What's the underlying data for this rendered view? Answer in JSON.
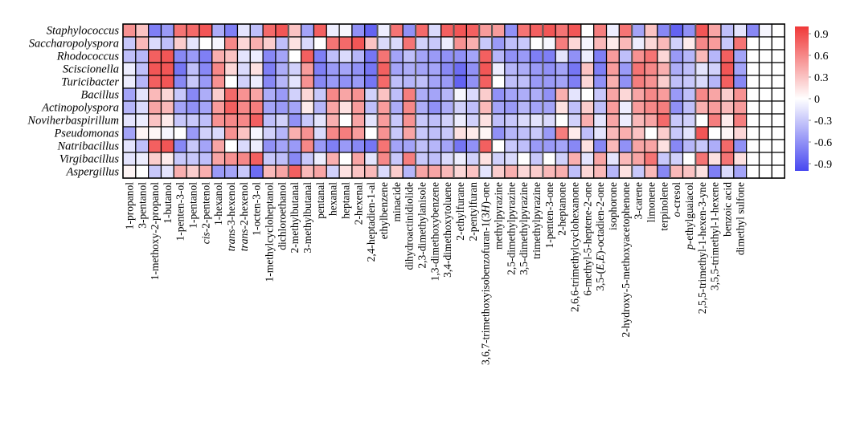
{
  "chart_data": {
    "type": "heatmap",
    "title": "",
    "xlabel": "",
    "ylabel": "",
    "rows": [
      "Staphylococcus",
      "Saccharopolyspora",
      "Rhodococcus",
      "Sciscionella",
      "Turicibacter",
      "Bacillus",
      "Actinopolyspora",
      "Noviherbaspirillum",
      "Pseudomonas",
      "Natribacillus",
      "Virgibacillus",
      "Aspergillus"
    ],
    "columns": [
      {
        "name": "1-propanol",
        "parts": [
          [
            "1-propanol",
            false
          ]
        ]
      },
      {
        "name": "3-pentanol",
        "parts": [
          [
            "3-pentanol",
            false
          ]
        ]
      },
      {
        "name": "1-methoxy-2-propanol",
        "parts": [
          [
            "1-methoxy-2-propanol",
            false
          ]
        ]
      },
      {
        "name": "1-butanol",
        "parts": [
          [
            "1-butanol",
            false
          ]
        ]
      },
      {
        "name": "1-penten-3-ol",
        "parts": [
          [
            "1-penten-3-ol",
            false
          ]
        ]
      },
      {
        "name": "1-pentanol",
        "parts": [
          [
            "1-pentanol",
            false
          ]
        ]
      },
      {
        "name": "cis-2-pentenol",
        "parts": [
          [
            "cis",
            true
          ],
          [
            "-2-pentenol",
            false
          ]
        ]
      },
      {
        "name": "1-hexanol",
        "parts": [
          [
            "1-hexanol",
            false
          ]
        ]
      },
      {
        "name": "trans-3-hexenol",
        "parts": [
          [
            "trans",
            true
          ],
          [
            "-3-hexenol",
            false
          ]
        ]
      },
      {
        "name": "trans-2-hexenol",
        "parts": [
          [
            "trans",
            true
          ],
          [
            "-2-hexenol",
            false
          ]
        ]
      },
      {
        "name": "1-octen-3-ol",
        "parts": [
          [
            "1-octen-3-ol",
            false
          ]
        ]
      },
      {
        "name": "1-methylcycloheptanol",
        "parts": [
          [
            "1-methylcycloheptanol",
            false
          ]
        ]
      },
      {
        "name": "dichloroethanol",
        "parts": [
          [
            "dichloroethanol",
            false
          ]
        ]
      },
      {
        "name": "2-methylbutanal",
        "parts": [
          [
            "2-methylbutanal",
            false
          ]
        ]
      },
      {
        "name": "3-methylbutanal",
        "parts": [
          [
            "3-methylbutanal",
            false
          ]
        ]
      },
      {
        "name": "pentanal",
        "parts": [
          [
            "pentanal",
            false
          ]
        ]
      },
      {
        "name": "hexanal",
        "parts": [
          [
            "hexanal",
            false
          ]
        ]
      },
      {
        "name": "heptanal",
        "parts": [
          [
            "heptanal",
            false
          ]
        ]
      },
      {
        "name": "2-hexenal",
        "parts": [
          [
            "2-hexenal",
            false
          ]
        ]
      },
      {
        "name": "2,4-heptadien-1-al",
        "parts": [
          [
            "2,4-heptadien-1-al",
            false
          ]
        ]
      },
      {
        "name": "ethylbenzene",
        "parts": [
          [
            "ethylbenzene",
            false
          ]
        ]
      },
      {
        "name": "minacide",
        "parts": [
          [
            "minacide",
            false
          ]
        ]
      },
      {
        "name": "dihydroactinidiolide",
        "parts": [
          [
            "dihydroactinidiolide",
            false
          ]
        ]
      },
      {
        "name": "2,3-dimethylanisole",
        "parts": [
          [
            "2,3-dimethylanisole",
            false
          ]
        ]
      },
      {
        "name": "1,3-dimethoxybenzene",
        "parts": [
          [
            "1,3-dimethoxybenzene",
            false
          ]
        ]
      },
      {
        "name": "3,4-dimethoxytoluene",
        "parts": [
          [
            "3,4-dimethoxytoluene",
            false
          ]
        ]
      },
      {
        "name": "2-ethylfurane",
        "parts": [
          [
            "2-ethylfurane",
            false
          ]
        ]
      },
      {
        "name": "2-pentylfuran",
        "parts": [
          [
            "2-pentylfuran",
            false
          ]
        ]
      },
      {
        "name": "3,6,7-trimethoxyisobenzofuran-1(3H)-one",
        "parts": [
          [
            "3,6,7-trimethoxyisobenzofuran-1(3",
            false
          ],
          [
            "H",
            true
          ],
          [
            ")-one",
            false
          ]
        ]
      },
      {
        "name": "methylpyrazine",
        "parts": [
          [
            "methylpyrazine",
            false
          ]
        ]
      },
      {
        "name": "2,5-dimethylpyrazine",
        "parts": [
          [
            "2,5-dimethylpyrazine",
            false
          ]
        ]
      },
      {
        "name": "3,5-dimethylpyrazine",
        "parts": [
          [
            "3,5-dimethylpyrazine",
            false
          ]
        ]
      },
      {
        "name": "trimethylpyrazine",
        "parts": [
          [
            "trimethylpyrazine",
            false
          ]
        ]
      },
      {
        "name": "1-penten-3-one",
        "parts": [
          [
            "1-penten-3-one",
            false
          ]
        ]
      },
      {
        "name": "2-heptanone",
        "parts": [
          [
            "2-heptanone",
            false
          ]
        ]
      },
      {
        "name": "2,6,6-trimethylcyclohexanone",
        "parts": [
          [
            "2,6,6-trimethylcyclohexanone",
            false
          ]
        ]
      },
      {
        "name": "6-methyl-5-heptene-2-one",
        "parts": [
          [
            "6-methyl-5-heptene-2-one",
            false
          ]
        ]
      },
      {
        "name": "3,5-(E,E)-octadien-2-one",
        "parts": [
          [
            "3,5-(",
            false
          ],
          [
            "E",
            true
          ],
          [
            ",",
            false
          ],
          [
            "E",
            true
          ],
          [
            ")-octadien-2-one",
            false
          ]
        ]
      },
      {
        "name": "isophorone",
        "parts": [
          [
            "isophorone",
            false
          ]
        ]
      },
      {
        "name": "2-hydroxy-5-methoxyacetophenone",
        "parts": [
          [
            "2-hydroxy-5-methoxyacetophenone",
            false
          ]
        ]
      },
      {
        "name": "3-carene",
        "parts": [
          [
            "3-carene",
            false
          ]
        ]
      },
      {
        "name": "limonene",
        "parts": [
          [
            "limonene",
            false
          ]
        ]
      },
      {
        "name": "terpinolene",
        "parts": [
          [
            "terpinolene",
            false
          ]
        ]
      },
      {
        "name": "o-cresol",
        "parts": [
          [
            "o",
            true
          ],
          [
            "-cresol",
            false
          ]
        ]
      },
      {
        "name": "p-ethylguaiacol",
        "parts": [
          [
            "p",
            true
          ],
          [
            "-ethylguaiacol",
            false
          ]
        ]
      },
      {
        "name": "2,5,5-trimethyl-1-hexen-3-yne",
        "parts": [
          [
            "2,5,5-trimethyl-1-hexen-3-yne",
            false
          ]
        ]
      },
      {
        "name": "3,5,5-trimethyl-1-hexene",
        "parts": [
          [
            "3,5,5-trimethyl-1-hexene",
            false
          ]
        ]
      },
      {
        "name": "benzoic acid",
        "parts": [
          [
            "benzoic acid",
            false
          ]
        ]
      },
      {
        "name": "dimethyl sulfone",
        "parts": [
          [
            "dimethyl sulfone",
            false
          ]
        ]
      },
      {
        "name": "",
        "parts": []
      },
      {
        "name": "",
        "parts": []
      },
      {
        "name": "",
        "parts": []
      }
    ],
    "group_breaks_after": [
      12,
      19,
      20,
      22,
      25,
      27,
      28,
      32,
      39,
      42,
      44
    ],
    "values": [
      [
        0.55,
        0.3,
        -0.7,
        -0.55,
        0.7,
        0.75,
        0.85,
        -0.45,
        -0.7,
        -0.15,
        -0.35,
        0.75,
        0.85,
        0.3,
        -0.5,
        0.8,
        -0.1,
        -0.05,
        -0.6,
        -0.85,
        -0.1,
        0.7,
        -0.6,
        0.75,
        -0.2,
        0.8,
        0.85,
        0.8,
        0.5,
        0.5,
        -0.6,
        0.7,
        0.8,
        0.85,
        0.7,
        0.85,
        0.0,
        0.65,
        -0.1,
        0.7,
        -0.5,
        0.3,
        -0.65,
        -0.85,
        -0.6,
        0.85,
        0.45,
        -0.35,
        -0.15,
        -0.65,
        -0.05,
        0.0
      ],
      [
        -0.3,
        0.35,
        -0.2,
        -0.35,
        0.25,
        -0.15,
        0.0,
        -0.05,
        0.6,
        0.2,
        0.4,
        0.25,
        -0.35,
        0.15,
        -0.2,
        0.0,
        0.7,
        0.75,
        0.85,
        0.3,
        -0.2,
        -0.2,
        0.7,
        -0.25,
        -0.3,
        -0.1,
        0.55,
        0.4,
        -0.3,
        -0.55,
        -0.35,
        -0.3,
        0.0,
        -0.05,
        0.65,
        0.2,
        -0.05,
        0.35,
        0.1,
        0.35,
        -0.1,
        0.2,
        0.35,
        -0.25,
        0.1,
        0.6,
        0.5,
        -0.3,
        0.7,
        0.0,
        0.0,
        0.0
      ],
      [
        -0.35,
        -0.4,
        0.8,
        0.85,
        -0.65,
        -0.55,
        -0.7,
        0.4,
        0.3,
        -0.15,
        -0.1,
        -0.65,
        -0.5,
        0.0,
        0.8,
        -0.7,
        -0.35,
        -0.2,
        -0.4,
        -0.75,
        0.7,
        -0.5,
        -0.35,
        -0.5,
        -0.55,
        -0.6,
        -0.6,
        -0.5,
        0.8,
        -0.4,
        -0.6,
        -0.55,
        -0.7,
        -0.7,
        -0.15,
        -0.6,
        -0.1,
        -0.7,
        0.5,
        -0.35,
        0.55,
        0.7,
        0.2,
        -0.55,
        -0.4,
        0.35,
        -0.4,
        0.8,
        -0.5,
        0.0,
        0.0,
        0.0
      ],
      [
        -0.1,
        -0.35,
        0.85,
        0.85,
        -0.75,
        -0.35,
        -0.65,
        0.6,
        0.2,
        -0.2,
        0.15,
        -0.7,
        -0.45,
        -0.25,
        0.5,
        -0.7,
        -0.55,
        -0.5,
        -0.6,
        -0.75,
        0.8,
        -0.5,
        -0.45,
        -0.5,
        -0.5,
        -0.65,
        -0.8,
        -0.6,
        0.85,
        -0.1,
        -0.4,
        -0.45,
        -0.55,
        -0.6,
        -0.5,
        -0.75,
        0.3,
        -0.7,
        0.5,
        -0.55,
        0.7,
        0.6,
        0.4,
        -0.45,
        -0.35,
        -0.15,
        -0.25,
        0.85,
        -0.5,
        0.0,
        0.0,
        0.0
      ],
      [
        -0.1,
        -0.4,
        0.8,
        0.85,
        -0.65,
        -0.3,
        -0.55,
        0.55,
        0.0,
        -0.25,
        -0.1,
        -0.65,
        -0.4,
        -0.15,
        0.55,
        -0.65,
        -0.55,
        -0.6,
        -0.55,
        -0.75,
        0.75,
        -0.35,
        -0.4,
        -0.35,
        -0.5,
        -0.55,
        -0.85,
        -0.6,
        0.8,
        0.0,
        -0.35,
        -0.35,
        -0.55,
        -0.55,
        -0.5,
        -0.7,
        0.2,
        -0.6,
        0.4,
        -0.6,
        0.65,
        0.55,
        0.25,
        -0.35,
        -0.3,
        -0.2,
        -0.4,
        0.8,
        -0.65,
        0.0,
        0.0,
        0.0
      ],
      [
        -0.5,
        -0.15,
        0.35,
        0.2,
        -0.3,
        -0.65,
        -0.45,
        0.25,
        0.75,
        0.55,
        0.45,
        -0.45,
        -0.55,
        -0.25,
        0.2,
        -0.3,
        0.6,
        0.45,
        0.55,
        -0.25,
        0.3,
        -0.35,
        0.65,
        -0.45,
        -0.5,
        -0.4,
        -0.05,
        -0.2,
        0.25,
        -0.6,
        -0.5,
        -0.45,
        -0.45,
        -0.6,
        0.4,
        -0.15,
        0.0,
        -0.3,
        0.45,
        0.2,
        0.45,
        0.6,
        0.5,
        -0.55,
        -0.35,
        0.6,
        0.45,
        0.25,
        0.55,
        0.0,
        0.0,
        0.0
      ],
      [
        -0.4,
        -0.2,
        0.45,
        0.35,
        -0.5,
        -0.6,
        -0.5,
        0.5,
        0.8,
        0.6,
        0.65,
        -0.5,
        -0.55,
        -0.5,
        0.1,
        -0.4,
        0.45,
        0.15,
        0.5,
        -0.35,
        0.5,
        -0.45,
        0.6,
        -0.45,
        -0.6,
        -0.45,
        -0.25,
        -0.35,
        0.35,
        -0.5,
        -0.55,
        -0.4,
        -0.5,
        -0.5,
        0.15,
        -0.35,
        0.25,
        -0.35,
        0.5,
        -0.1,
        0.5,
        0.6,
        0.65,
        -0.6,
        -0.35,
        0.4,
        0.5,
        0.35,
        0.5,
        0.0,
        0.0,
        0.0
      ],
      [
        -0.15,
        -0.1,
        0.3,
        0.1,
        -0.3,
        -0.3,
        -0.35,
        0.55,
        0.6,
        0.6,
        0.8,
        -0.35,
        -0.25,
        -0.6,
        -0.3,
        -0.15,
        0.4,
        0.0,
        0.45,
        -0.15,
        0.5,
        -0.3,
        0.55,
        -0.3,
        -0.35,
        -0.25,
        -0.1,
        -0.25,
        0.15,
        -0.35,
        -0.3,
        -0.2,
        -0.15,
        -0.2,
        0.0,
        -0.25,
        0.4,
        -0.15,
        0.45,
        -0.1,
        0.35,
        0.45,
        0.75,
        -0.3,
        -0.25,
        0.0,
        0.65,
        0.1,
        0.65,
        0.0,
        0.0,
        0.0
      ],
      [
        -0.5,
        0.05,
        0.05,
        -0.05,
        0.0,
        -0.55,
        -0.25,
        -0.2,
        0.55,
        0.3,
        -0.05,
        -0.25,
        -0.4,
        0.4,
        0.55,
        -0.2,
        0.6,
        0.65,
        0.5,
        0.0,
        0.55,
        -0.3,
        0.45,
        -0.3,
        -0.35,
        -0.3,
        0.15,
        0.1,
        0.05,
        -0.6,
        -0.4,
        -0.35,
        -0.3,
        -0.55,
        0.65,
        0.1,
        -0.35,
        -0.15,
        0.35,
        0.4,
        0.3,
        0.0,
        0.25,
        -0.3,
        -0.15,
        0.85,
        0.0,
        0.05,
        0.2,
        0.0,
        0.0,
        0.0
      ],
      [
        -0.15,
        -0.35,
        0.8,
        0.85,
        -0.65,
        -0.3,
        -0.5,
        0.45,
        0.0,
        -0.2,
        -0.1,
        -0.6,
        -0.5,
        -0.55,
        0.6,
        -0.55,
        -0.7,
        -0.55,
        -0.65,
        -0.75,
        0.7,
        -0.5,
        -0.5,
        -0.35,
        -0.4,
        -0.5,
        -0.75,
        -0.6,
        0.8,
        0.0,
        -0.3,
        -0.35,
        -0.55,
        -0.55,
        -0.5,
        -0.65,
        0.15,
        -0.65,
        0.35,
        -0.6,
        0.45,
        0.45,
        0.15,
        -0.65,
        -0.4,
        -0.3,
        -0.45,
        0.75,
        -0.6,
        0.0,
        0.0,
        0.0
      ],
      [
        -0.15,
        -0.1,
        0.25,
        0.1,
        -0.3,
        -0.3,
        -0.35,
        0.45,
        0.55,
        0.6,
        0.8,
        -0.3,
        -0.35,
        -0.65,
        -0.3,
        -0.1,
        0.4,
        0.0,
        0.45,
        -0.15,
        0.6,
        -0.3,
        0.65,
        -0.3,
        -0.35,
        -0.2,
        -0.1,
        -0.25,
        0.15,
        -0.25,
        -0.2,
        0.0,
        -0.3,
        0.0,
        -0.25,
        0.4,
        -0.15,
        0.45,
        -0.15,
        0.35,
        0.45,
        0.7,
        -0.3,
        -0.25,
        0.0,
        0.7,
        0.15,
        0.7,
        0.15,
        0.0,
        0.0,
        0.0
      ],
      [
        0.05,
        0.0,
        -0.3,
        -0.15,
        0.4,
        0.25,
        0.4,
        -0.55,
        -0.5,
        -0.3,
        -0.8,
        0.35,
        0.45,
        0.8,
        0.35,
        0.45,
        -0.25,
        0.15,
        0.3,
        0.35,
        -0.2,
        0.25,
        -0.4,
        0.45,
        0.45,
        0.35,
        0.2,
        0.3,
        -0.15,
        0.25,
        0.4,
        0.2,
        0.25,
        0.35,
        0.4,
        -0.35,
        0.2,
        0.35,
        -0.4,
        0.15,
        -0.3,
        0.35,
        -0.65,
        0.35,
        0.3,
        0.15,
        -0.7,
        -0.2,
        -0.5,
        0.0,
        0.0,
        0.0
      ]
    ],
    "colorscale": {
      "min": -1.0,
      "mid": 0.0,
      "max": 1.0,
      "low_color": "#4848f0",
      "mid_color": "#ffffff",
      "high_color": "#f03838"
    },
    "colorbar": {
      "ticks": [
        "0.9",
        "0.6",
        "0.3",
        "0",
        "-0.3",
        "-0.6",
        "-0.9"
      ],
      "tick_values": [
        0.9,
        0.6,
        0.3,
        0,
        -0.3,
        -0.6,
        -0.9
      ],
      "placement": "right"
    }
  }
}
